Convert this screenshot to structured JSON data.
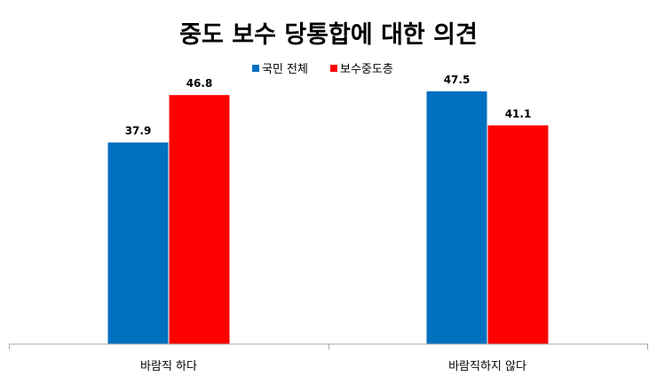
{
  "chart_data": {
    "type": "bar",
    "title": "중도 보수 당통합에 대한 의견",
    "categories": [
      "바람직 하다",
      "바람직하지 않다"
    ],
    "series": [
      {
        "name": "국민 전체",
        "values": [
          37.9,
          47.5
        ],
        "color": "#0070C0"
      },
      {
        "name": "보수중도층",
        "values": [
          46.8,
          41.1
        ],
        "color": "#FF0000"
      }
    ],
    "ylim": [
      0,
      60
    ],
    "grid": false,
    "legend_position": "top-center",
    "xlabel": "",
    "ylabel": ""
  }
}
